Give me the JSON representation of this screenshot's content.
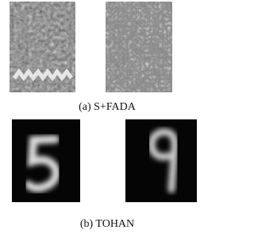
{
  "subfigures": [
    {
      "caption": "(a) S+FADA"
    },
    {
      "caption": "(b) TOHAN"
    }
  ]
}
